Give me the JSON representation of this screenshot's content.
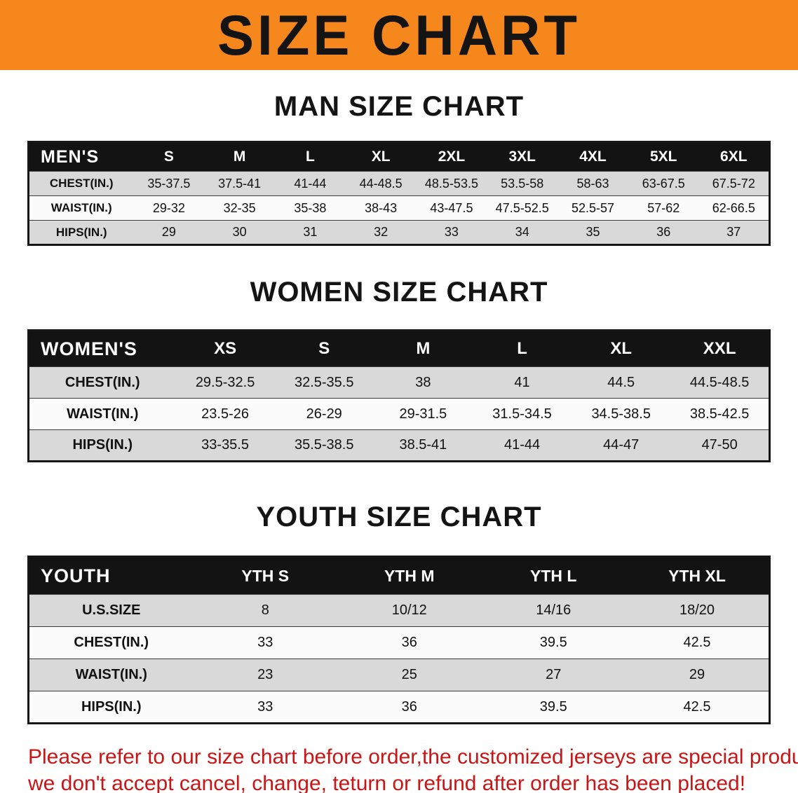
{
  "banner": {
    "title": "SIZE CHART",
    "bg_color": "#f5871d",
    "text_color": "#141414"
  },
  "sections": {
    "men": {
      "heading": "MAN SIZE CHART",
      "header_label": "MEN'S",
      "columns": [
        "S",
        "M",
        "L",
        "XL",
        "2XL",
        "3XL",
        "4XL",
        "5XL",
        "6XL"
      ],
      "rows": [
        {
          "label": "CHEST(IN.)",
          "values": [
            "35-37.5",
            "37.5-41",
            "41-44",
            "44-48.5",
            "48.5-53.5",
            "53.5-58",
            "58-63",
            "63-67.5",
            "67.5-72"
          ]
        },
        {
          "label": "WAIST(IN.)",
          "values": [
            "29-32",
            "32-35",
            "35-38",
            "38-43",
            "43-47.5",
            "47.5-52.5",
            "52.5-57",
            "57-62",
            "62-66.5"
          ]
        },
        {
          "label": "HIPS(IN.)",
          "values": [
            "29",
            "30",
            "31",
            "32",
            "33",
            "34",
            "35",
            "36",
            "37"
          ]
        }
      ]
    },
    "women": {
      "heading": "WOMEN SIZE CHART",
      "header_label": "WOMEN'S",
      "columns": [
        "XS",
        "S",
        "M",
        "L",
        "XL",
        "XXL"
      ],
      "rows": [
        {
          "label": "CHEST(IN.)",
          "values": [
            "29.5-32.5",
            "32.5-35.5",
            "38",
            "41",
            "44.5",
            "44.5-48.5"
          ]
        },
        {
          "label": "WAIST(IN.)",
          "values": [
            "23.5-26",
            "26-29",
            "29-31.5",
            "31.5-34.5",
            "34.5-38.5",
            "38.5-42.5"
          ]
        },
        {
          "label": "HIPS(IN.)",
          "values": [
            "33-35.5",
            "35.5-38.5",
            "38.5-41",
            "41-44",
            "44-47",
            "47-50"
          ]
        }
      ]
    },
    "youth": {
      "heading": "YOUTH SIZE CHART",
      "header_label": "YOUTH",
      "columns": [
        "YTH S",
        "YTH M",
        "YTH L",
        "YTH XL"
      ],
      "rows": [
        {
          "label": "U.S.SIZE",
          "values": [
            "8",
            "10/12",
            "14/16",
            "18/20"
          ]
        },
        {
          "label": "CHEST(IN.)",
          "values": [
            "33",
            "36",
            "39.5",
            "42.5"
          ]
        },
        {
          "label": "WAIST(IN.)",
          "values": [
            "23",
            "25",
            "27",
            "29"
          ]
        },
        {
          "label": "HIPS(IN.)",
          "values": [
            "33",
            "36",
            "39.5",
            "42.5"
          ]
        }
      ]
    }
  },
  "footer": {
    "line1": "Please refer to our size chart before order,the customized jerseys are special products,",
    "line2": "we don't accept cancel, change, teturn or refund after order has been placed!",
    "text_color": "#c81616"
  },
  "colors": {
    "table_header_bg": "#131313",
    "table_header_text": "#ffffff",
    "row_shaded": "#d9d9d9",
    "row_plain": "#fbfbfb"
  }
}
